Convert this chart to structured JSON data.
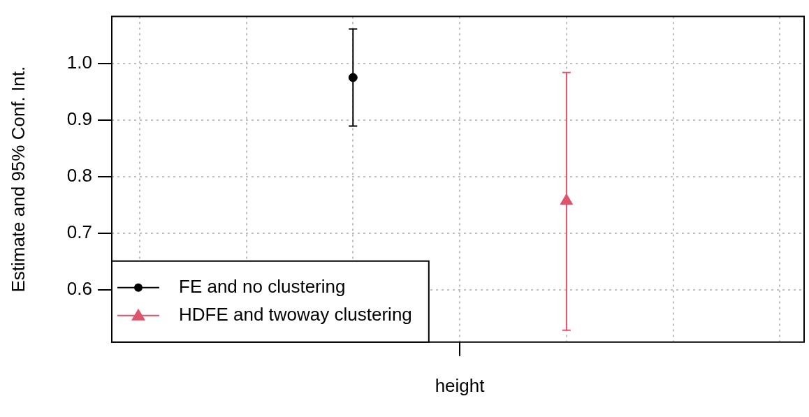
{
  "chart_data": {
    "type": "scatter",
    "ylabel": "Estimate and 95% Conf. Int.",
    "categories": [
      "height"
    ],
    "ylim": [
      0.507,
      1.083
    ],
    "yticks": [
      0.6,
      0.7,
      0.8,
      0.9,
      {
        "value": 1,
        "label": "1.0"
      }
    ],
    "grid": true,
    "legend": "bottom left",
    "series": [
      {
        "name": "FE and no clustering",
        "color": "#000000",
        "marker": "circle",
        "values": [
          0.975
        ],
        "errors": [
          [
            0.889,
            1.061
          ]
        ]
      },
      {
        "name": "HDFE and twoway clustering",
        "color": "#df536b",
        "marker": "triangle",
        "values": [
          0.757
        ],
        "errors": [
          [
            0.528,
            0.984
          ]
        ]
      }
    ]
  }
}
